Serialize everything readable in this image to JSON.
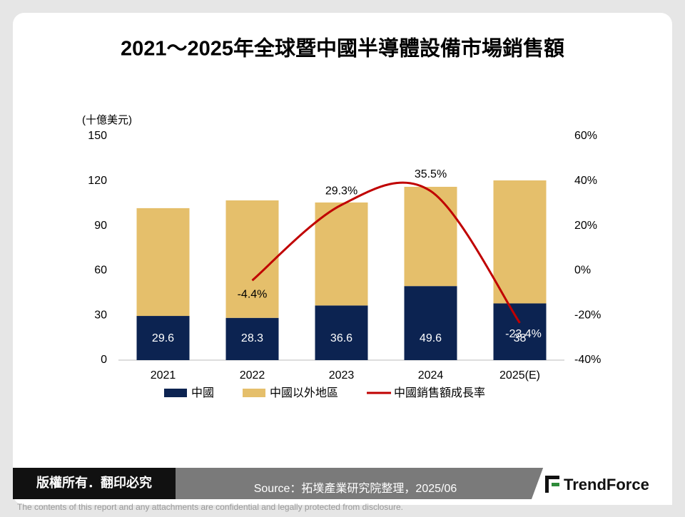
{
  "chart_data": {
    "type": "bar-line",
    "title": "2021～2025年全球暨中國半導體設備市場銷售額",
    "y_label": "(十億美元)",
    "categories": [
      "2021",
      "2022",
      "2023",
      "2024",
      "2025(E)"
    ],
    "series": [
      {
        "name": "中國",
        "color": "#0c2351",
        "type": "bar",
        "values": [
          29.6,
          28.3,
          36.6,
          49.6,
          38
        ]
      },
      {
        "name": "中國以外地區",
        "color": "#e5bf6b",
        "type": "bar",
        "values": [
          72.2,
          78.7,
          69.0,
          66.5,
          82.4
        ]
      },
      {
        "name": "中國銷售額成長率",
        "color": "#c00000",
        "type": "line",
        "axis": "y2",
        "values": [
          null,
          -4.4,
          29.3,
          35.5,
          -23.4
        ],
        "value_labels": [
          null,
          "-4.4%",
          "29.3%",
          "35.5%",
          "-23.4%"
        ]
      }
    ],
    "ylim": [
      0,
      150
    ],
    "yticks": [
      0,
      30,
      60,
      90,
      120,
      150
    ],
    "y2lim": [
      -40,
      60
    ],
    "y2ticks": [
      {
        "value": -40,
        "label": "-40%"
      },
      {
        "value": -20,
        "label": "-20%"
      },
      {
        "value": 0,
        "label": "0%"
      },
      {
        "value": 20,
        "label": "20%"
      },
      {
        "value": 40,
        "label": "40%"
      },
      {
        "value": 60,
        "label": "60%"
      }
    ],
    "grid": false,
    "legend": "bottom"
  },
  "footer": {
    "copyright": "版權所有．翻印必究",
    "source": "Source：拓墣產業研究院整理，2025/06",
    "logo": "TrendForce",
    "disclaimer": "The contents of this report and any attachments are confidential and legally protected from disclosure."
  }
}
